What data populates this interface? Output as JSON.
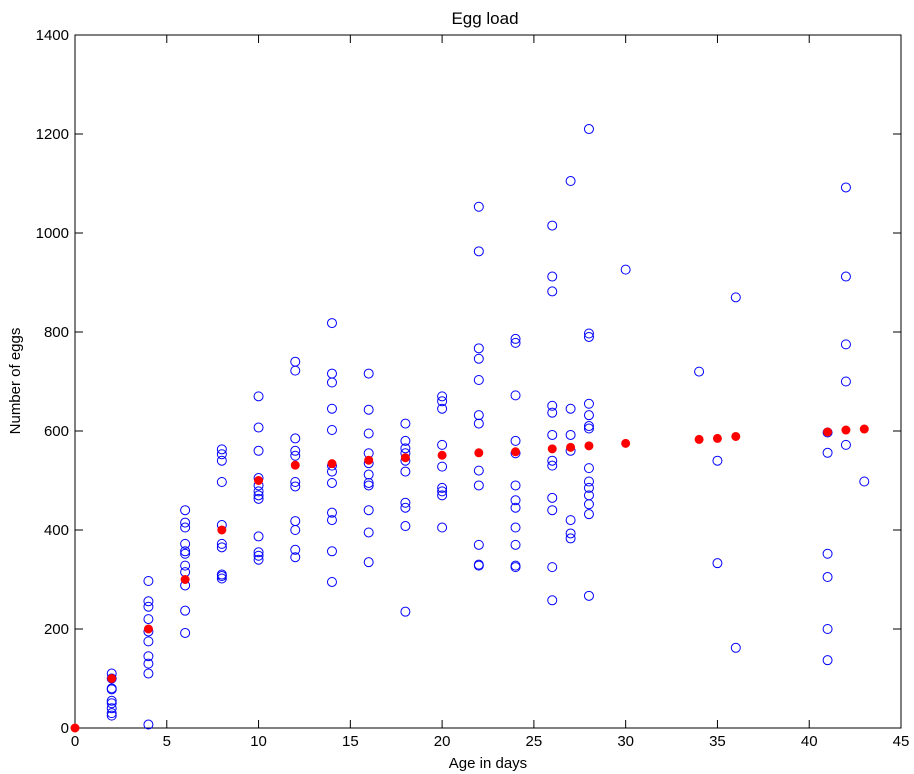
{
  "chart_data": {
    "type": "scatter",
    "title": "Egg load",
    "xlabel": "Age in days",
    "ylabel": "Number of eggs",
    "xlim": [
      0,
      45
    ],
    "ylim": [
      0,
      1400
    ],
    "xticks": [
      0,
      5,
      10,
      15,
      20,
      25,
      30,
      35,
      40,
      45
    ],
    "yticks": [
      0,
      200,
      400,
      600,
      800,
      1000,
      1200,
      1400
    ],
    "grid": false,
    "legend": "none",
    "series": [
      {
        "marker": "open-circle",
        "color": "#0000ff",
        "points": [
          [
            2,
            110
          ],
          [
            2,
            100
          ],
          [
            2,
            80
          ],
          [
            2,
            78
          ],
          [
            2,
            55
          ],
          [
            2,
            50
          ],
          [
            2,
            40
          ],
          [
            2,
            30
          ],
          [
            2,
            25
          ],
          [
            4,
            297
          ],
          [
            4,
            256
          ],
          [
            4,
            245
          ],
          [
            4,
            220
          ],
          [
            4,
            195
          ],
          [
            4,
            175
          ],
          [
            4,
            145
          ],
          [
            4,
            130
          ],
          [
            4,
            110
          ],
          [
            4,
            7
          ],
          [
            6,
            440
          ],
          [
            6,
            415
          ],
          [
            6,
            405
          ],
          [
            6,
            372
          ],
          [
            6,
            357
          ],
          [
            6,
            352
          ],
          [
            6,
            328
          ],
          [
            6,
            315
          ],
          [
            6,
            288
          ],
          [
            6,
            237
          ],
          [
            6,
            192
          ],
          [
            8,
            563
          ],
          [
            8,
            553
          ],
          [
            8,
            540
          ],
          [
            8,
            497
          ],
          [
            8,
            410
          ],
          [
            8,
            372
          ],
          [
            8,
            365
          ],
          [
            8,
            310
          ],
          [
            8,
            307
          ],
          [
            8,
            302
          ],
          [
            10,
            670
          ],
          [
            10,
            607
          ],
          [
            10,
            560
          ],
          [
            10,
            505
          ],
          [
            10,
            490
          ],
          [
            10,
            478
          ],
          [
            10,
            470
          ],
          [
            10,
            463
          ],
          [
            10,
            387
          ],
          [
            10,
            355
          ],
          [
            10,
            348
          ],
          [
            10,
            340
          ],
          [
            12,
            740
          ],
          [
            12,
            722
          ],
          [
            12,
            585
          ],
          [
            12,
            560
          ],
          [
            12,
            550
          ],
          [
            12,
            497
          ],
          [
            12,
            488
          ],
          [
            12,
            418
          ],
          [
            12,
            400
          ],
          [
            12,
            360
          ],
          [
            12,
            345
          ],
          [
            14,
            818
          ],
          [
            14,
            716
          ],
          [
            14,
            698
          ],
          [
            14,
            645
          ],
          [
            14,
            602
          ],
          [
            14,
            530
          ],
          [
            14,
            518
          ],
          [
            14,
            495
          ],
          [
            14,
            435
          ],
          [
            14,
            420
          ],
          [
            14,
            357
          ],
          [
            14,
            295
          ],
          [
            16,
            716
          ],
          [
            16,
            643
          ],
          [
            16,
            595
          ],
          [
            16,
            555
          ],
          [
            16,
            535
          ],
          [
            16,
            512
          ],
          [
            16,
            495
          ],
          [
            16,
            490
          ],
          [
            16,
            440
          ],
          [
            16,
            395
          ],
          [
            16,
            335
          ],
          [
            18,
            615
          ],
          [
            18,
            580
          ],
          [
            18,
            565
          ],
          [
            18,
            555
          ],
          [
            18,
            540
          ],
          [
            18,
            518
          ],
          [
            18,
            455
          ],
          [
            18,
            445
          ],
          [
            18,
            408
          ],
          [
            18,
            235
          ],
          [
            20,
            670
          ],
          [
            20,
            660
          ],
          [
            20,
            645
          ],
          [
            20,
            572
          ],
          [
            20,
            528
          ],
          [
            20,
            485
          ],
          [
            20,
            478
          ],
          [
            20,
            470
          ],
          [
            20,
            405
          ],
          [
            22,
            1053
          ],
          [
            22,
            963
          ],
          [
            22,
            767
          ],
          [
            22,
            746
          ],
          [
            22,
            703
          ],
          [
            22,
            632
          ],
          [
            22,
            615
          ],
          [
            22,
            520
          ],
          [
            22,
            490
          ],
          [
            22,
            370
          ],
          [
            22,
            330
          ],
          [
            22,
            328
          ],
          [
            24,
            786
          ],
          [
            24,
            778
          ],
          [
            24,
            672
          ],
          [
            24,
            580
          ],
          [
            24,
            555
          ],
          [
            24,
            490
          ],
          [
            24,
            460
          ],
          [
            24,
            445
          ],
          [
            24,
            405
          ],
          [
            24,
            370
          ],
          [
            24,
            328
          ],
          [
            24,
            325
          ],
          [
            26,
            1015
          ],
          [
            26,
            912
          ],
          [
            26,
            882
          ],
          [
            26,
            651
          ],
          [
            26,
            637
          ],
          [
            26,
            592
          ],
          [
            26,
            540
          ],
          [
            26,
            530
          ],
          [
            26,
            465
          ],
          [
            26,
            440
          ],
          [
            26,
            325
          ],
          [
            26,
            258
          ],
          [
            27,
            1105
          ],
          [
            27,
            645
          ],
          [
            27,
            592
          ],
          [
            27,
            560
          ],
          [
            27,
            420
          ],
          [
            27,
            393
          ],
          [
            27,
            383
          ],
          [
            28,
            1210
          ],
          [
            28,
            797
          ],
          [
            28,
            790
          ],
          [
            28,
            655
          ],
          [
            28,
            632
          ],
          [
            28,
            610
          ],
          [
            28,
            605
          ],
          [
            28,
            525
          ],
          [
            28,
            498
          ],
          [
            28,
            485
          ],
          [
            28,
            470
          ],
          [
            28,
            452
          ],
          [
            28,
            432
          ],
          [
            28,
            267
          ],
          [
            30,
            926
          ],
          [
            34,
            720
          ],
          [
            35,
            540
          ],
          [
            35,
            333
          ],
          [
            36,
            870
          ],
          [
            36,
            162
          ],
          [
            41,
            597
          ],
          [
            41,
            556
          ],
          [
            41,
            352
          ],
          [
            41,
            305
          ],
          [
            41,
            200
          ],
          [
            41,
            137
          ],
          [
            42,
            1092
          ],
          [
            42,
            912
          ],
          [
            42,
            775
          ],
          [
            42,
            700
          ],
          [
            42,
            572
          ],
          [
            43,
            498
          ]
        ]
      },
      {
        "marker": "filled-circle",
        "color": "#ff0000",
        "points": [
          [
            0,
            0
          ],
          [
            2,
            100
          ],
          [
            4,
            200
          ],
          [
            6,
            300
          ],
          [
            8,
            400
          ],
          [
            10,
            500
          ],
          [
            12,
            531
          ],
          [
            14,
            534
          ],
          [
            16,
            541
          ],
          [
            18,
            546
          ],
          [
            20,
            551
          ],
          [
            22,
            556
          ],
          [
            24,
            558
          ],
          [
            26,
            564
          ],
          [
            27,
            567
          ],
          [
            28,
            570
          ],
          [
            30,
            575
          ],
          [
            34,
            583
          ],
          [
            35,
            585
          ],
          [
            36,
            589
          ],
          [
            41,
            598
          ],
          [
            42,
            602
          ],
          [
            43,
            604
          ]
        ]
      }
    ]
  }
}
